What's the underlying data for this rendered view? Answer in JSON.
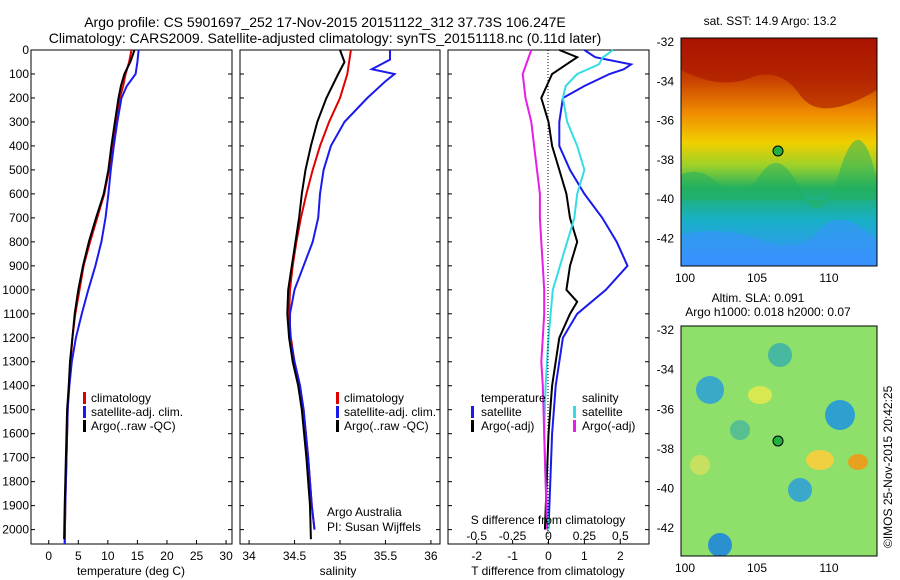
{
  "title_line1": "Argo profile: CS 5901697_252 17-Nov-2015 20151122_312 37.73S 106.247E",
  "title_line2": "Climatology: CARS2009. Satellite-adjusted climatology: synTS_20151118.nc (0.11d later)",
  "colors": {
    "climatology": "#e00000",
    "satellite": "#1a1aee",
    "argo": "#000000",
    "salinity_sat": "#33dde6",
    "salinity_argo": "#e61ee6"
  },
  "depth_ticks": [
    0,
    100,
    200,
    300,
    400,
    500,
    600,
    700,
    800,
    900,
    1000,
    1100,
    1200,
    1300,
    1400,
    1500,
    1600,
    1700,
    1800,
    1900,
    2000
  ],
  "panels": {
    "temperature": {
      "xlabel": "temperature (deg C)",
      "xticks": [
        "0",
        "5",
        "10",
        "15",
        "20",
        "25",
        "30"
      ],
      "legend": [
        "climatology",
        "satellite-adj. clim.",
        "Argo(..raw -QC)"
      ]
    },
    "salinity": {
      "xlabel": "salinity",
      "xticks": [
        "34",
        "34.5",
        "35",
        "35.5",
        "36"
      ],
      "legend": [
        "climatology",
        "satellite-adj. clim.",
        "Argo(..raw -QC)"
      ],
      "credit1": "Argo Australia",
      "credit2": "PI: Susan Wijffels"
    },
    "difference": {
      "xlabel": "T difference from climatology",
      "xticks": [
        "-2",
        "-1",
        "0",
        "1",
        "2"
      ],
      "s_label": "S difference from climatology",
      "s_ticks": [
        "-0.5",
        "-0.25",
        "0",
        "0.25",
        "0.5"
      ],
      "legend_t_head": "temperature",
      "legend_s_head": "salinity",
      "legend_items": [
        "satellite",
        "Argo(-adj)",
        "satellite",
        "Argo(-adj)"
      ]
    },
    "map_sst": {
      "title": "sat. SST: 14.9 Argo: 13.2",
      "yticks": [
        "-32",
        "-34",
        "-36",
        "-38",
        "-40",
        "-42"
      ],
      "xticks": [
        "100",
        "105",
        "110"
      ]
    },
    "map_sla": {
      "title1": "Altim. SLA: 0.091",
      "title2": "Argo h1000: 0.018 h2000: 0.07",
      "yticks": [
        "-32",
        "-34",
        "-36",
        "-38",
        "-40",
        "-42"
      ],
      "xticks": [
        "100",
        "105",
        "110"
      ],
      "stamp": "©IMOS 25-Nov-2015 20:42:25"
    }
  },
  "chart_data": [
    {
      "type": "line",
      "panel": "temperature",
      "xlabel": "temperature (deg C)",
      "ylabel": "",
      "xlim": [
        -3,
        31
      ],
      "ylim": [
        2060,
        0
      ],
      "series": [
        {
          "name": "climatology",
          "depth": [
            0,
            50,
            100,
            150,
            200,
            300,
            400,
            500,
            600,
            700,
            800,
            900,
            1000,
            1100,
            1200,
            1300,
            1400,
            1500,
            1700,
            1900,
            2060
          ],
          "values": [
            14.0,
            13.6,
            13.0,
            12.6,
            12.0,
            11.3,
            10.8,
            10.2,
            9.4,
            8.2,
            7.0,
            5.9,
            5.2,
            4.5,
            4.0,
            3.7,
            3.4,
            3.2,
            3.0,
            2.8,
            2.7
          ]
        },
        {
          "name": "satellite-adj. clim.",
          "depth": [
            0,
            50,
            100,
            150,
            200,
            300,
            400,
            500,
            600,
            700,
            800,
            900,
            1000,
            1100,
            1200,
            1300,
            1400,
            1500,
            1700,
            1900,
            2060
          ],
          "values": [
            15.2,
            15.0,
            14.7,
            13.2,
            12.3,
            11.6,
            11.0,
            10.5,
            10.1,
            9.6,
            8.9,
            7.9,
            6.7,
            5.6,
            4.6,
            3.9,
            3.5,
            3.2,
            3.0,
            2.8,
            2.7
          ]
        },
        {
          "name": "Argo(..raw -QC)",
          "depth": [
            0,
            50,
            100,
            150,
            200,
            300,
            400,
            500,
            600,
            700,
            800,
            900,
            1000,
            1100,
            1200,
            1300,
            1400,
            1500,
            1700,
            1900,
            2040
          ],
          "values": [
            14.5,
            13.8,
            12.8,
            12.2,
            11.8,
            11.2,
            10.6,
            10.1,
            9.3,
            8.0,
            6.8,
            5.8,
            5.0,
            4.4,
            4.0,
            3.6,
            3.4,
            3.1,
            2.9,
            2.7,
            2.6
          ]
        }
      ]
    },
    {
      "type": "line",
      "panel": "salinity",
      "xlabel": "salinity",
      "ylabel": "",
      "xlim": [
        33.9,
        36.1
      ],
      "ylim": [
        2060,
        0
      ],
      "series": [
        {
          "name": "climatology",
          "depth": [
            0,
            50,
            100,
            200,
            300,
            400,
            500,
            600,
            700,
            800,
            900,
            1000,
            1100,
            1200,
            1300,
            1400,
            1500,
            1700,
            1900,
            2000
          ],
          "values": [
            35.12,
            35.1,
            35.08,
            35.0,
            34.88,
            34.78,
            34.7,
            34.63,
            34.57,
            34.52,
            34.48,
            34.45,
            34.44,
            34.46,
            34.5,
            34.56,
            34.6,
            34.65,
            34.69,
            34.72
          ]
        },
        {
          "name": "satellite-adj. clim.",
          "depth": [
            0,
            40,
            80,
            100,
            130,
            200,
            300,
            400,
            500,
            600,
            700,
            800,
            900,
            1000,
            1100,
            1200,
            1300,
            1400,
            1500,
            1700,
            1900,
            2000
          ],
          "values": [
            35.55,
            35.55,
            35.35,
            35.6,
            35.5,
            35.3,
            35.05,
            34.9,
            34.82,
            34.78,
            34.76,
            34.7,
            34.6,
            34.5,
            34.45,
            34.45,
            34.5,
            34.56,
            34.6,
            34.65,
            34.69,
            34.72
          ]
        },
        {
          "name": "Argo(..raw -QC)",
          "depth": [
            0,
            50,
            100,
            200,
            300,
            400,
            500,
            600,
            700,
            800,
            900,
            1000,
            1100,
            1200,
            1300,
            1400,
            1500,
            1700,
            1900,
            2040
          ],
          "values": [
            35.0,
            35.05,
            34.98,
            34.85,
            34.75,
            34.68,
            34.62,
            34.58,
            34.55,
            34.51,
            34.47,
            34.43,
            34.42,
            34.44,
            34.48,
            34.54,
            34.58,
            34.63,
            34.67,
            34.68
          ]
        }
      ]
    },
    {
      "type": "line",
      "panel": "difference",
      "xlabel": "T difference from climatology",
      "xlim": [
        -2.8,
        2.8
      ],
      "x2label": "S difference from climatology",
      "x2lim": [
        -0.7,
        0.7
      ],
      "ylim": [
        2060,
        0
      ],
      "series": [
        {
          "name": "satellite",
          "quantity": "T",
          "depth": [
            0,
            30,
            60,
            80,
            100,
            150,
            200,
            300,
            400,
            500,
            600,
            700,
            800,
            900,
            1000,
            1100,
            1200,
            1400,
            1600,
            1800,
            2000
          ],
          "values": [
            1.0,
            1.3,
            2.3,
            2.1,
            1.7,
            1.0,
            0.4,
            0.3,
            0.3,
            0.6,
            1.0,
            1.5,
            1.9,
            2.2,
            1.6,
            0.8,
            0.4,
            0.2,
            0.1,
            0.05,
            0.0
          ]
        },
        {
          "name": "Argo(-adj)",
          "quantity": "T",
          "depth": [
            0,
            30,
            60,
            100,
            200,
            300,
            400,
            500,
            600,
            700,
            800,
            900,
            1000,
            1050,
            1100,
            1200,
            1300,
            1400,
            1600,
            1800,
            2000
          ],
          "values": [
            0.3,
            0.8,
            0.5,
            0.1,
            -0.2,
            0.0,
            0.1,
            0.3,
            0.5,
            0.6,
            0.8,
            0.6,
            0.5,
            0.8,
            0.6,
            0.3,
            0.2,
            0.1,
            0.0,
            -0.05,
            -0.1
          ]
        },
        {
          "name": "satellite",
          "quantity": "S",
          "depth": [
            0,
            30,
            60,
            100,
            150,
            200,
            300,
            400,
            500,
            600,
            700,
            800,
            900,
            1000,
            1200,
            1400,
            1600,
            1800,
            2000
          ],
          "values": [
            0.45,
            0.38,
            0.35,
            0.2,
            0.12,
            0.1,
            0.13,
            0.2,
            0.25,
            0.2,
            0.18,
            0.13,
            0.08,
            0.03,
            0.0,
            -0.02,
            -0.03,
            -0.02,
            0.0
          ]
        },
        {
          "name": "Argo(-adj)",
          "quantity": "S",
          "depth": [
            0,
            100,
            200,
            300,
            400,
            500,
            600,
            700,
            800,
            900,
            1000,
            1100,
            1200,
            1300,
            1400,
            1600,
            1800,
            2000
          ],
          "values": [
            -0.12,
            -0.18,
            -0.16,
            -0.12,
            -0.1,
            -0.08,
            -0.06,
            -0.06,
            -0.05,
            -0.04,
            -0.03,
            -0.03,
            -0.04,
            -0.05,
            -0.04,
            -0.03,
            -0.02,
            -0.01
          ]
        }
      ]
    }
  ]
}
